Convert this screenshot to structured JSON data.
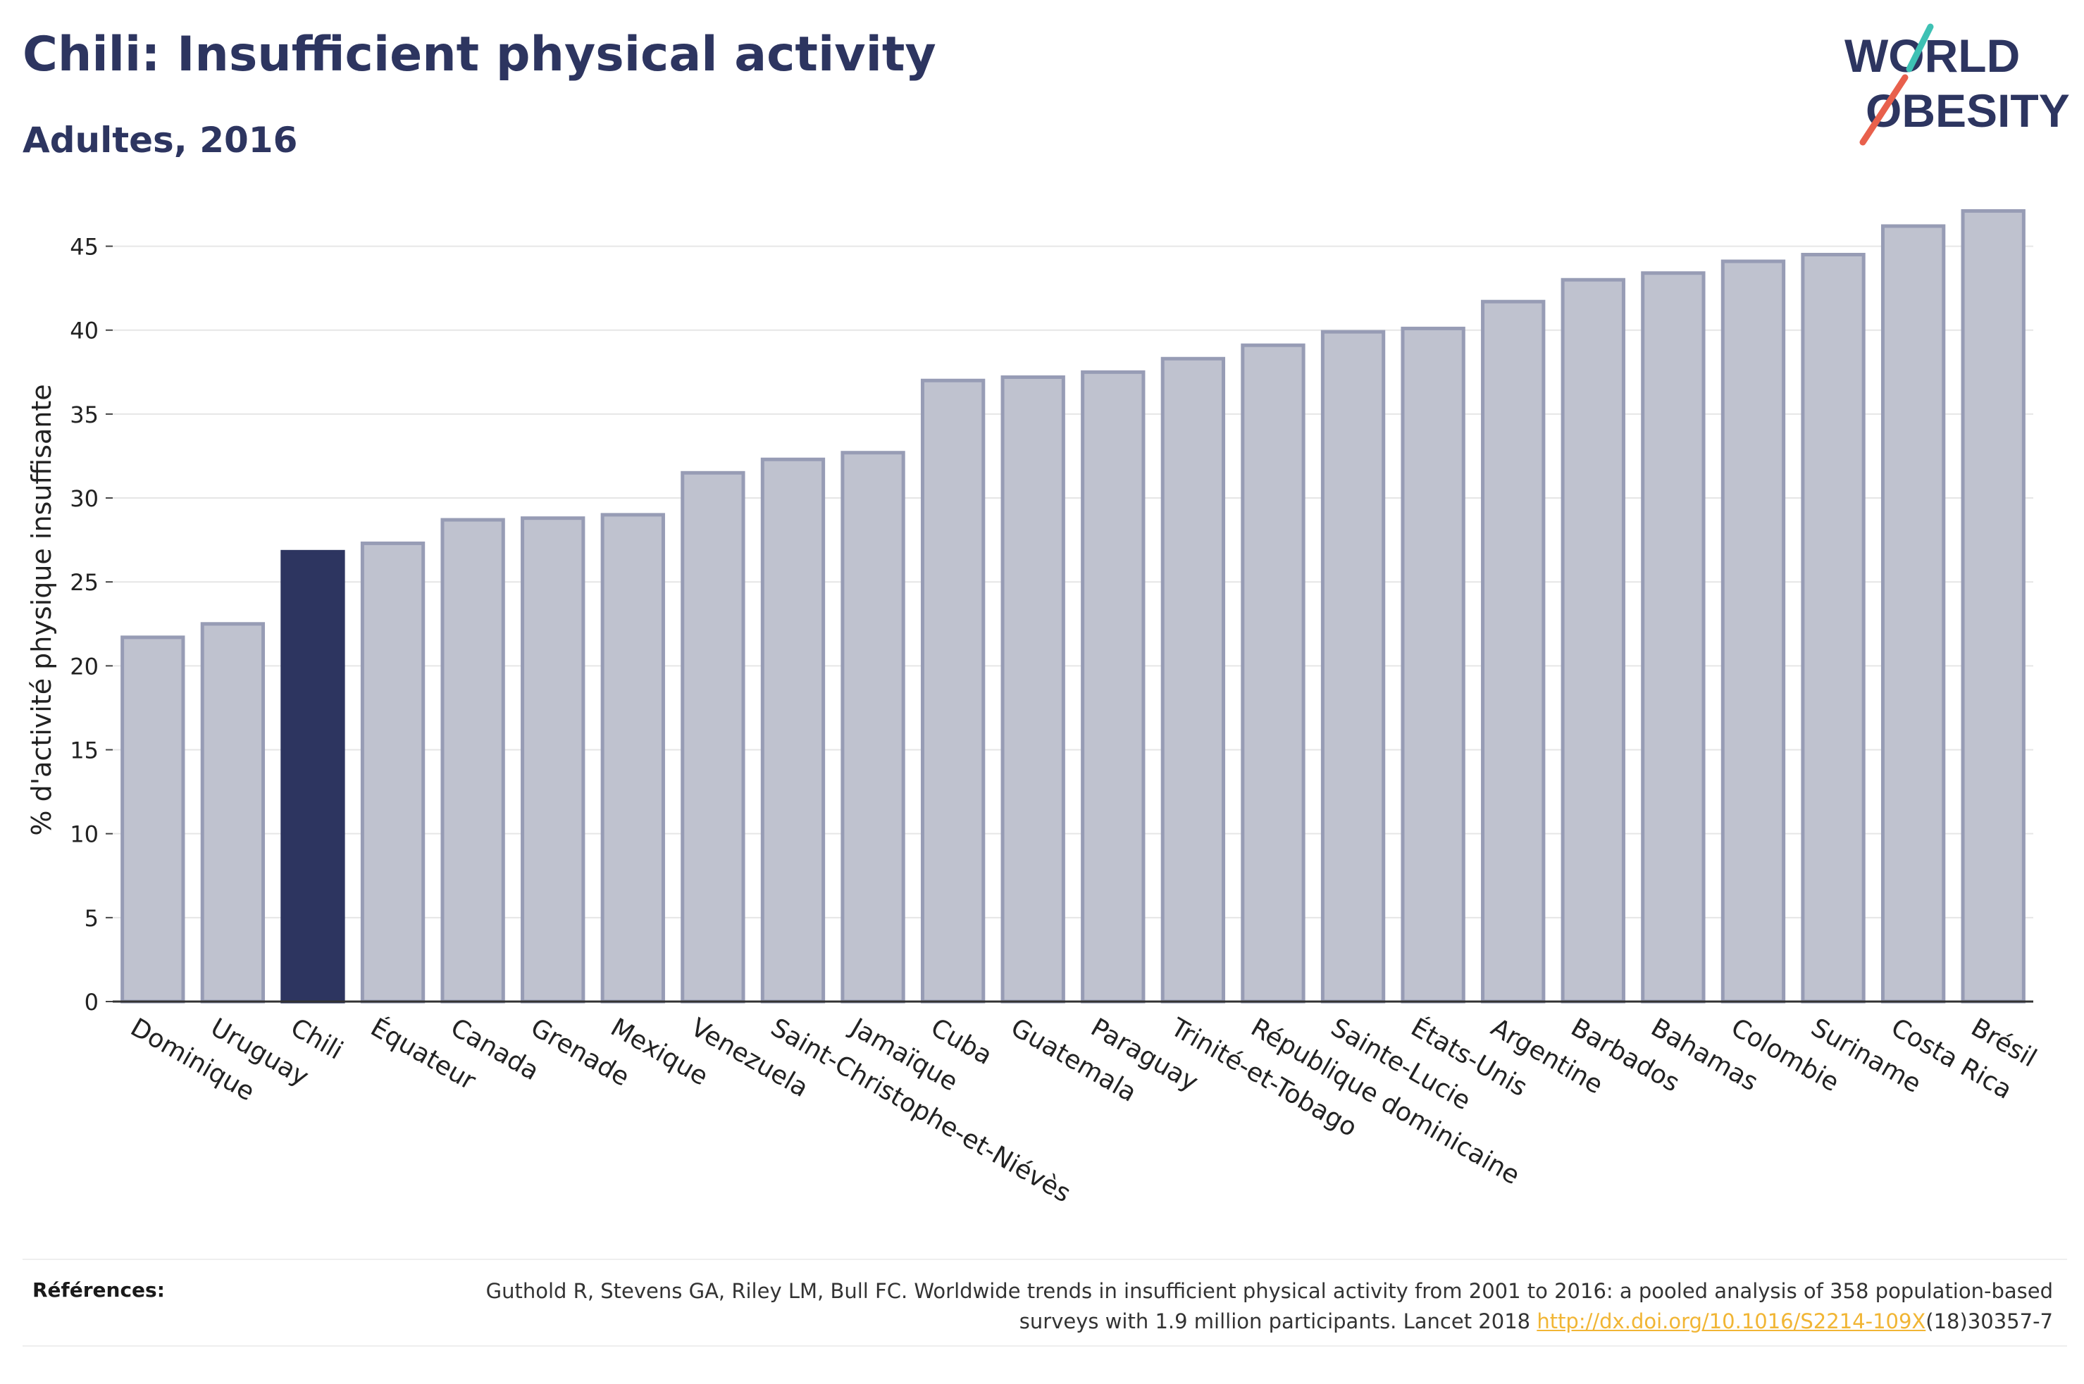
{
  "header": {
    "title": "Chili: Insufficient physical activity",
    "subtitle": "Adultes, 2016"
  },
  "logo": {
    "line1": "WORLD",
    "line2": "OBESITY",
    "colors": {
      "text": "#2d3560",
      "accent_red": "#e8604c",
      "accent_teal": "#3ec1b4"
    }
  },
  "chart_data": {
    "type": "bar",
    "ylabel": "% d'activité physique insuffisante",
    "ylim": [
      0,
      47.5
    ],
    "yticks": [
      0,
      5,
      10,
      15,
      20,
      25,
      30,
      35,
      40,
      45
    ],
    "grid": true,
    "highlight": "Chili",
    "colors": {
      "bar": "#bfc2cf",
      "bar_edge": "#979cb5",
      "highlight": "#2d3560"
    },
    "categories": [
      "Dominique",
      "Uruguay",
      "Chili",
      "Équateur",
      "Canada",
      "Grenade",
      "Mexique",
      "Venezuela",
      "Saint-Christophe-et-Niévès",
      "Jamaïque",
      "Cuba",
      "Guatemala",
      "Paraguay",
      "Trinité-et-Tobago",
      "République dominicaine",
      "Sainte-Lucie",
      "États-Unis",
      "Argentine",
      "Barbados",
      "Bahamas",
      "Colombie",
      "Suriname",
      "Costa Rica",
      "Brésil"
    ],
    "values": [
      21.7,
      22.5,
      26.8,
      27.3,
      28.7,
      28.8,
      29.0,
      31.5,
      32.3,
      32.7,
      37.0,
      37.2,
      37.5,
      38.3,
      39.1,
      39.9,
      40.1,
      41.7,
      43.0,
      43.4,
      44.1,
      44.5,
      46.2,
      47.1
    ]
  },
  "references": {
    "label": "Références:",
    "text": "Guthold R, Stevens GA, Riley LM, Bull FC. Worldwide trends in insufficient physical activity from 2001 to 2016: a pooled analysis of 358 population-based surveys with 1.9 million participants. Lancet 2018 ",
    "link": "http://dx.doi.org/10.1016/S2214-109X",
    "suffix": "(18)30357-7"
  }
}
